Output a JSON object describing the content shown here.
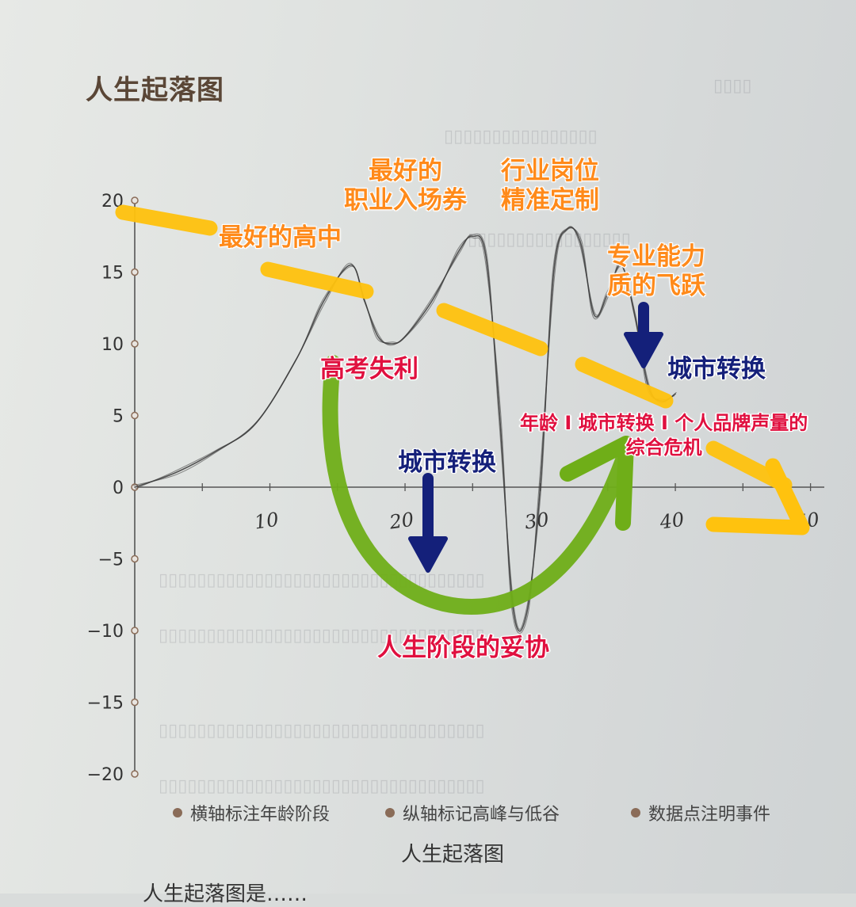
{
  "page": {
    "title": "人生起落图",
    "caption": "人生起落图",
    "body_fragment": "人生起落图是……"
  },
  "chart_data": {
    "type": "line",
    "title": "人生起落图",
    "xlabel": "",
    "ylabel": "",
    "xlim": [
      0,
      50
    ],
    "ylim": [
      -20,
      20
    ],
    "y_ticks": [
      20,
      15,
      10,
      5,
      0,
      -5,
      -10,
      -15,
      -20
    ],
    "y_tick_labels": [
      "20",
      "15",
      "10",
      "5",
      "0",
      "−5",
      "−10",
      "−15",
      "−20"
    ],
    "x_ticks": [
      10,
      20,
      30,
      40,
      50
    ],
    "x_tick_labels": [
      "10",
      "20",
      "30",
      "40",
      "50"
    ],
    "grid": false,
    "legend": [
      "横轴标注年龄阶段",
      "纵轴标记高峰与低谷",
      "数据点注明事件"
    ],
    "legend_placement": "bottom",
    "series": [
      {
        "x": [
          0,
          3,
          6,
          9,
          12,
          14,
          16,
          17,
          18,
          19,
          20,
          22,
          24,
          25,
          26,
          27,
          28,
          29,
          30,
          31,
          32,
          33,
          34,
          35,
          36,
          37,
          38,
          39,
          40
        ],
        "y": [
          0,
          1,
          2.5,
          4.5,
          9,
          13,
          15.5,
          13,
          10.5,
          10,
          10.5,
          13,
          16.5,
          17.5,
          16,
          5,
          -8.5,
          -8.8,
          0,
          15,
          18,
          17,
          12,
          13.5,
          15.5,
          12,
          7,
          6,
          6.5
        ]
      }
    ],
    "line_color": "#3a3a3a"
  },
  "annotations": {
    "best_high_school": "最好的高中",
    "best_ticket": [
      "最好的",
      "职业入场券"
    ],
    "custom_role": [
      "行业岗位",
      "精准定制"
    ],
    "skill_leap": [
      "专业能力",
      "质的飞跃"
    ],
    "exam_setback": "高考失利",
    "city_switch_right": "城市转换",
    "city_switch_mid": "城市转换",
    "crisis": [
      "年龄 I 城市转换 I 个人品牌声量的",
      "综合危机"
    ],
    "compromise": "人生阶段的妥协"
  },
  "colors": {
    "trend_marker": "#ffc20e",
    "arc_marker": "#6fae18",
    "down_arrow": "#14207a",
    "orange_text": "#ff8a1a",
    "red_text": "#e0103f",
    "axis_point": "#8a6c58"
  }
}
